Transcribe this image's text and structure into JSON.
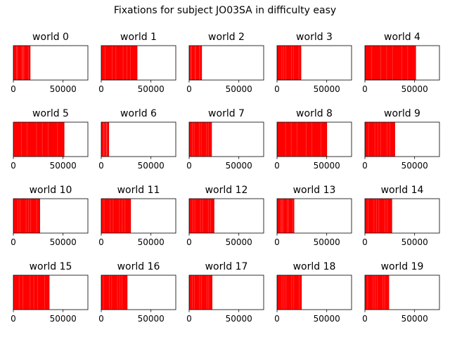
{
  "chart_data": {
    "type": "timeline",
    "title": "Fixations for subject JO03SA in difficulty easy",
    "xlim": [
      0,
      75000
    ],
    "xticks": [
      0,
      50000
    ],
    "xtick_labels": [
      "0",
      "50000"
    ],
    "color": "#ff0000",
    "grid": false,
    "panels": [
      {
        "label": "world 0",
        "extent": 16800
      },
      {
        "label": "world 1",
        "extent": 36000
      },
      {
        "label": "world 2",
        "extent": 12500
      },
      {
        "label": "world 3",
        "extent": 24000
      },
      {
        "label": "world 4",
        "extent": 51000
      },
      {
        "label": "world 5",
        "extent": 51000
      },
      {
        "label": "world 6",
        "extent": 7500
      },
      {
        "label": "world 7",
        "extent": 22500
      },
      {
        "label": "world 8",
        "extent": 50000
      },
      {
        "label": "world 9",
        "extent": 30000
      },
      {
        "label": "world 10",
        "extent": 26500
      },
      {
        "label": "world 11",
        "extent": 29500
      },
      {
        "label": "world 12",
        "extent": 25000
      },
      {
        "label": "world 13",
        "extent": 17000
      },
      {
        "label": "world 14",
        "extent": 27000
      },
      {
        "label": "world 15",
        "extent": 36000
      },
      {
        "label": "world 16",
        "extent": 26000
      },
      {
        "label": "world 17",
        "extent": 23000
      },
      {
        "label": "world 18",
        "extent": 24500
      },
      {
        "label": "world 19",
        "extent": 24000
      }
    ]
  }
}
